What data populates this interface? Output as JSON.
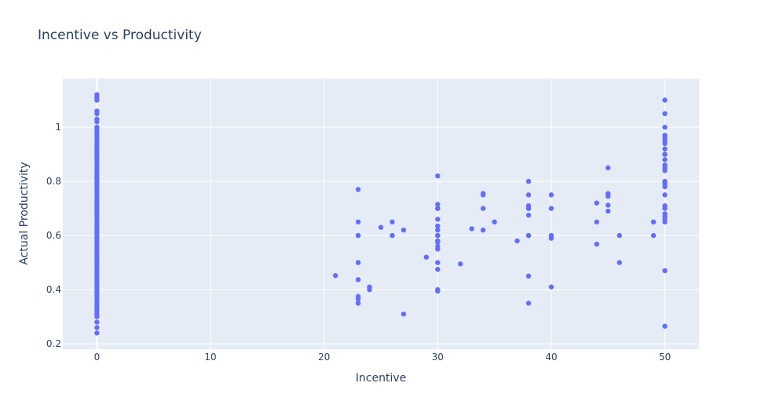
{
  "chart_data": {
    "type": "scatter",
    "title": "Incentive vs Productivity",
    "xlabel": "Incentive",
    "ylabel": "Actual Productivity",
    "xlim": [
      -3,
      53
    ],
    "ylim": [
      0.18,
      1.18
    ],
    "xticks": [
      0,
      10,
      20,
      30,
      40,
      50
    ],
    "yticks": [
      0.2,
      0.4,
      0.6,
      0.8,
      1
    ],
    "xtick_labels": [
      "0",
      "10",
      "20",
      "30",
      "40",
      "50"
    ],
    "ytick_labels": [
      "0.2",
      "0.4",
      "0.6",
      "0.8",
      "1"
    ],
    "grid": true,
    "marker_color": "#636efa",
    "background_color": "#e5ecf6",
    "series": [
      {
        "x": [
          0,
          0,
          0,
          0,
          0,
          0,
          0,
          0,
          0,
          0,
          0,
          0,
          0,
          0,
          0,
          0,
          0,
          0,
          0,
          0,
          0,
          0,
          0,
          0,
          0,
          0,
          0,
          0,
          0,
          0,
          0,
          0,
          0,
          0,
          0,
          0,
          0,
          0,
          0,
          0,
          0,
          0,
          0,
          0,
          0,
          0,
          0,
          0,
          0,
          0,
          0,
          0,
          0,
          0,
          0,
          0,
          0,
          0,
          0,
          0,
          0,
          0,
          0,
          0,
          0,
          0,
          0,
          0,
          0,
          0,
          0,
          0,
          0,
          0,
          0,
          0,
          0,
          0,
          0,
          0,
          0,
          21,
          23,
          23,
          23,
          23,
          23,
          23,
          23,
          23,
          23,
          24,
          24,
          25,
          26,
          26,
          27,
          27,
          29,
          30,
          30,
          30,
          30,
          30,
          30,
          30,
          30,
          30,
          30,
          30,
          30,
          30,
          30,
          30,
          30,
          30,
          32,
          33,
          34,
          34,
          34,
          34,
          35,
          37,
          38,
          38,
          38,
          38,
          38,
          38,
          38,
          38,
          38,
          38,
          40,
          40,
          40,
          40,
          40,
          44,
          44,
          44,
          45,
          45,
          45,
          45,
          45,
          46,
          46,
          49,
          49,
          50,
          50,
          50,
          50,
          50,
          50,
          50,
          50,
          50,
          50,
          50,
          50,
          50,
          50,
          50,
          50,
          50,
          50,
          50,
          50,
          50,
          50,
          50,
          50,
          50,
          50
        ],
        "y": [
          1.12,
          1.11,
          1.1,
          1.06,
          1.05,
          1.03,
          1.02,
          1.0,
          0.99,
          0.98,
          0.97,
          0.96,
          0.95,
          0.94,
          0.93,
          0.92,
          0.91,
          0.9,
          0.89,
          0.88,
          0.87,
          0.86,
          0.85,
          0.84,
          0.83,
          0.82,
          0.81,
          0.8,
          0.79,
          0.78,
          0.77,
          0.76,
          0.75,
          0.74,
          0.73,
          0.72,
          0.71,
          0.7,
          0.69,
          0.68,
          0.67,
          0.66,
          0.65,
          0.64,
          0.63,
          0.62,
          0.61,
          0.6,
          0.59,
          0.58,
          0.57,
          0.56,
          0.55,
          0.54,
          0.53,
          0.52,
          0.51,
          0.5,
          0.49,
          0.48,
          0.47,
          0.46,
          0.45,
          0.44,
          0.43,
          0.42,
          0.41,
          0.4,
          0.39,
          0.38,
          0.37,
          0.36,
          0.35,
          0.34,
          0.33,
          0.32,
          0.31,
          0.3,
          0.28,
          0.26,
          0.24,
          0.452,
          0.77,
          0.65,
          0.6,
          0.5,
          0.437,
          0.375,
          0.365,
          0.35,
          0.6,
          0.41,
          0.4,
          0.63,
          0.65,
          0.6,
          0.62,
          0.31,
          0.52,
          0.82,
          0.715,
          0.7,
          0.66,
          0.635,
          0.62,
          0.6,
          0.575,
          0.56,
          0.55,
          0.5,
          0.475,
          0.4,
          0.395,
          0.7,
          0.58,
          0.6,
          0.495,
          0.625,
          0.755,
          0.75,
          0.7,
          0.62,
          0.65,
          0.58,
          0.8,
          0.75,
          0.71,
          0.7,
          0.675,
          0.6,
          0.45,
          0.35,
          0.6,
          0.7,
          0.75,
          0.7,
          0.6,
          0.59,
          0.41,
          0.72,
          0.65,
          0.568,
          0.85,
          0.755,
          0.745,
          0.712,
          0.69,
          0.6,
          0.5,
          0.65,
          0.6,
          1.1,
          1.05,
          1.0,
          0.97,
          0.96,
          0.95,
          0.94,
          0.92,
          0.9,
          0.88,
          0.86,
          0.85,
          0.84,
          0.8,
          0.79,
          0.78,
          0.75,
          0.71,
          0.7,
          0.68,
          0.67,
          0.66,
          0.47,
          0.265,
          0.65,
          0.9
        ]
      }
    ]
  }
}
